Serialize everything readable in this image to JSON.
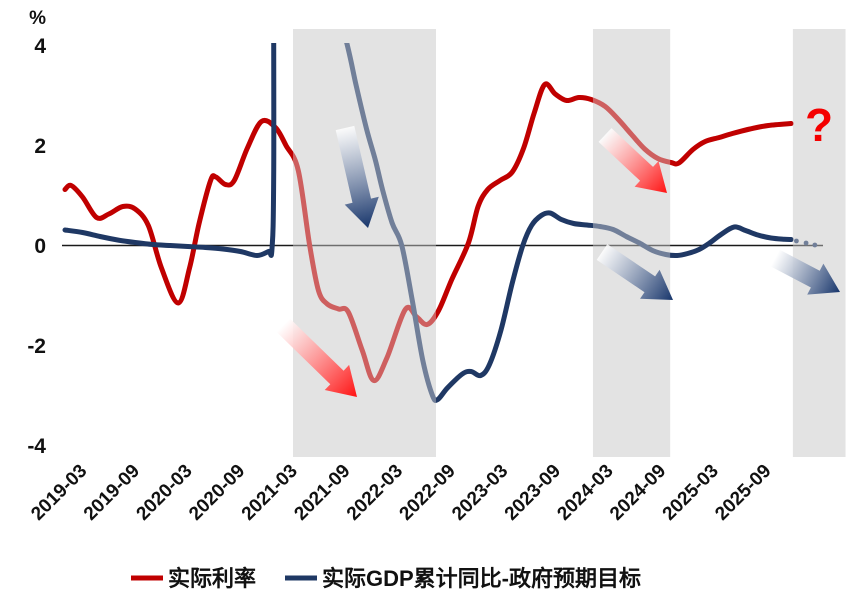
{
  "chart_data": {
    "type": "line",
    "title": "",
    "y_axis": {
      "unit": "%",
      "ticks": [
        4,
        2,
        0,
        -2,
        -4
      ],
      "min": -4,
      "max": 4
    },
    "x_axis": {
      "start": "2019-03",
      "tick_interval_months": 6,
      "tick_labels": [
        "2019-03",
        "2019-09",
        "2020-03",
        "2020-09",
        "2021-03",
        "2021-09",
        "2022-03",
        "2022-09",
        "2023-03",
        "2023-09",
        "2024-03",
        "2024-09",
        "2025-03",
        "2025-09"
      ]
    },
    "series": [
      {
        "name": "实际利率",
        "color": "#C00000",
        "points": [
          [
            0,
            1.12
          ],
          [
            0.7,
            1.2
          ],
          [
            2,
            0.97
          ],
          [
            3.6,
            0.56
          ],
          [
            5,
            0.63
          ],
          [
            6.6,
            0.78
          ],
          [
            8,
            0.73
          ],
          [
            9.5,
            0.4
          ],
          [
            11,
            -0.45
          ],
          [
            12.9,
            -1.15
          ],
          [
            14.2,
            -0.45
          ],
          [
            15.3,
            0.45
          ],
          [
            16.6,
            1.3
          ],
          [
            17.2,
            1.37
          ],
          [
            18.3,
            1.22
          ],
          [
            19.3,
            1.3
          ],
          [
            20.8,
            1.95
          ],
          [
            22.4,
            2.48
          ],
          [
            24,
            2.36
          ],
          [
            25.2,
            2.0
          ],
          [
            26.6,
            1.5
          ],
          [
            27.9,
            0.0
          ],
          [
            28.9,
            -0.9
          ],
          [
            29.9,
            -1.17
          ],
          [
            31.2,
            -1.27
          ],
          [
            32.3,
            -1.33
          ],
          [
            33.9,
            -2.1
          ],
          [
            35.2,
            -2.7
          ],
          [
            36.7,
            -2.25
          ],
          [
            38.8,
            -1.28
          ],
          [
            40.1,
            -1.43
          ],
          [
            41.3,
            -1.58
          ],
          [
            42.6,
            -1.3
          ],
          [
            44.1,
            -0.68
          ],
          [
            46,
            0.05
          ],
          [
            47.1,
            0.78
          ],
          [
            48.2,
            1.12
          ],
          [
            49.6,
            1.3
          ],
          [
            51,
            1.47
          ],
          [
            52.3,
            1.95
          ],
          [
            53.5,
            2.65
          ],
          [
            54.7,
            3.22
          ],
          [
            55.9,
            3.03
          ],
          [
            57.2,
            2.9
          ],
          [
            58.6,
            2.96
          ],
          [
            60,
            2.92
          ],
          [
            61.6,
            2.78
          ],
          [
            63.1,
            2.52
          ],
          [
            64.6,
            2.22
          ],
          [
            66.1,
            1.93
          ],
          [
            67.6,
            1.74
          ],
          [
            69.1,
            1.66
          ],
          [
            70,
            1.65
          ],
          [
            71.6,
            1.92
          ],
          [
            73,
            2.08
          ],
          [
            74.6,
            2.16
          ],
          [
            76.1,
            2.24
          ],
          [
            78.1,
            2.33
          ],
          [
            80.2,
            2.4
          ],
          [
            82.8,
            2.44
          ]
        ]
      },
      {
        "name": "实际GDP累计同比-政府预期目标",
        "color": "#1F3864",
        "points": [
          [
            0,
            0.31
          ],
          [
            2,
            0.26
          ],
          [
            4,
            0.18
          ],
          [
            6,
            0.11
          ],
          [
            8,
            0.06
          ],
          [
            10,
            0.02
          ],
          [
            12,
            0.0
          ],
          [
            14,
            -0.02
          ],
          [
            16,
            -0.04
          ],
          [
            18,
            -0.07
          ],
          [
            20,
            -0.12
          ],
          [
            21.9,
            -0.2
          ],
          [
            23.2,
            -0.12
          ],
          [
            23.6,
            -0.07
          ],
          [
            23.8,
            1.5
          ],
          [
            23.9,
            8
          ],
          [
            25,
            12
          ],
          [
            28,
            8
          ],
          [
            30,
            5.5
          ],
          [
            32.2,
            4.0
          ],
          [
            33.2,
            3.2
          ],
          [
            34.4,
            2.32
          ],
          [
            35.4,
            1.7
          ],
          [
            36.2,
            1.12
          ],
          [
            37.3,
            0.45
          ],
          [
            38.4,
            0.0
          ],
          [
            39.6,
            -1.1
          ],
          [
            40.8,
            -2.3
          ],
          [
            41.9,
            -3.0
          ],
          [
            42.5,
            -3.08
          ],
          [
            43.6,
            -2.85
          ],
          [
            45.3,
            -2.57
          ],
          [
            46.3,
            -2.52
          ],
          [
            47.4,
            -2.6
          ],
          [
            48.4,
            -2.38
          ],
          [
            49.7,
            -1.7
          ],
          [
            51,
            -0.75
          ],
          [
            52.2,
            0.0
          ],
          [
            53.2,
            0.4
          ],
          [
            54.3,
            0.6
          ],
          [
            55.3,
            0.65
          ],
          [
            56.6,
            0.52
          ],
          [
            58,
            0.44
          ],
          [
            59.5,
            0.41
          ],
          [
            61,
            0.38
          ],
          [
            62.5,
            0.32
          ],
          [
            64,
            0.18
          ],
          [
            65.5,
            0.05
          ],
          [
            67,
            -0.1
          ],
          [
            68.5,
            -0.18
          ],
          [
            69.8,
            -0.2
          ],
          [
            71,
            -0.16
          ],
          [
            72.3,
            -0.08
          ],
          [
            73.5,
            0.05
          ],
          [
            74.8,
            0.22
          ],
          [
            76.3,
            0.37
          ],
          [
            77.6,
            0.3
          ],
          [
            79,
            0.21
          ],
          [
            80.5,
            0.15
          ],
          [
            82,
            0.125
          ],
          [
            82.8,
            0.12
          ]
        ],
        "dotted_tail": [
          [
            83.4,
            0.09
          ],
          [
            84.5,
            0.05
          ],
          [
            85.5,
            0.01
          ]
        ]
      }
    ],
    "highlight_bands": [
      {
        "start_month": 26,
        "end_month": 42.3
      },
      {
        "start_month": 60.2,
        "end_month": 69
      },
      {
        "start_month": 83,
        "end_month": 89
      }
    ],
    "annotations": {
      "arrows": [
        {
          "color": "#17356B",
          "from": [
            345,
            128
          ],
          "to": [
            368,
            228
          ]
        },
        {
          "color": "#FF1212",
          "from": [
            283,
            325
          ],
          "to": [
            357,
            397
          ]
        },
        {
          "color": "#FF1212",
          "from": [
            605,
            135
          ],
          "to": [
            667,
            193
          ]
        },
        {
          "color": "#17356B",
          "from": [
            602,
            252
          ],
          "to": [
            673,
            300
          ]
        },
        {
          "color": "#17356B",
          "from": [
            775,
            258
          ],
          "to": [
            840,
            292
          ]
        }
      ],
      "question_mark": {
        "text": "?",
        "color": "#F40000",
        "x": 819,
        "y": 141
      }
    },
    "legend": [
      {
        "label": "实际利率",
        "color": "#C00000"
      },
      {
        "label": "实际GDP累计同比-政府预期目标",
        "color": "#1F3864"
      }
    ],
    "band_color": "#E3E3E3",
    "zero_line": true
  }
}
